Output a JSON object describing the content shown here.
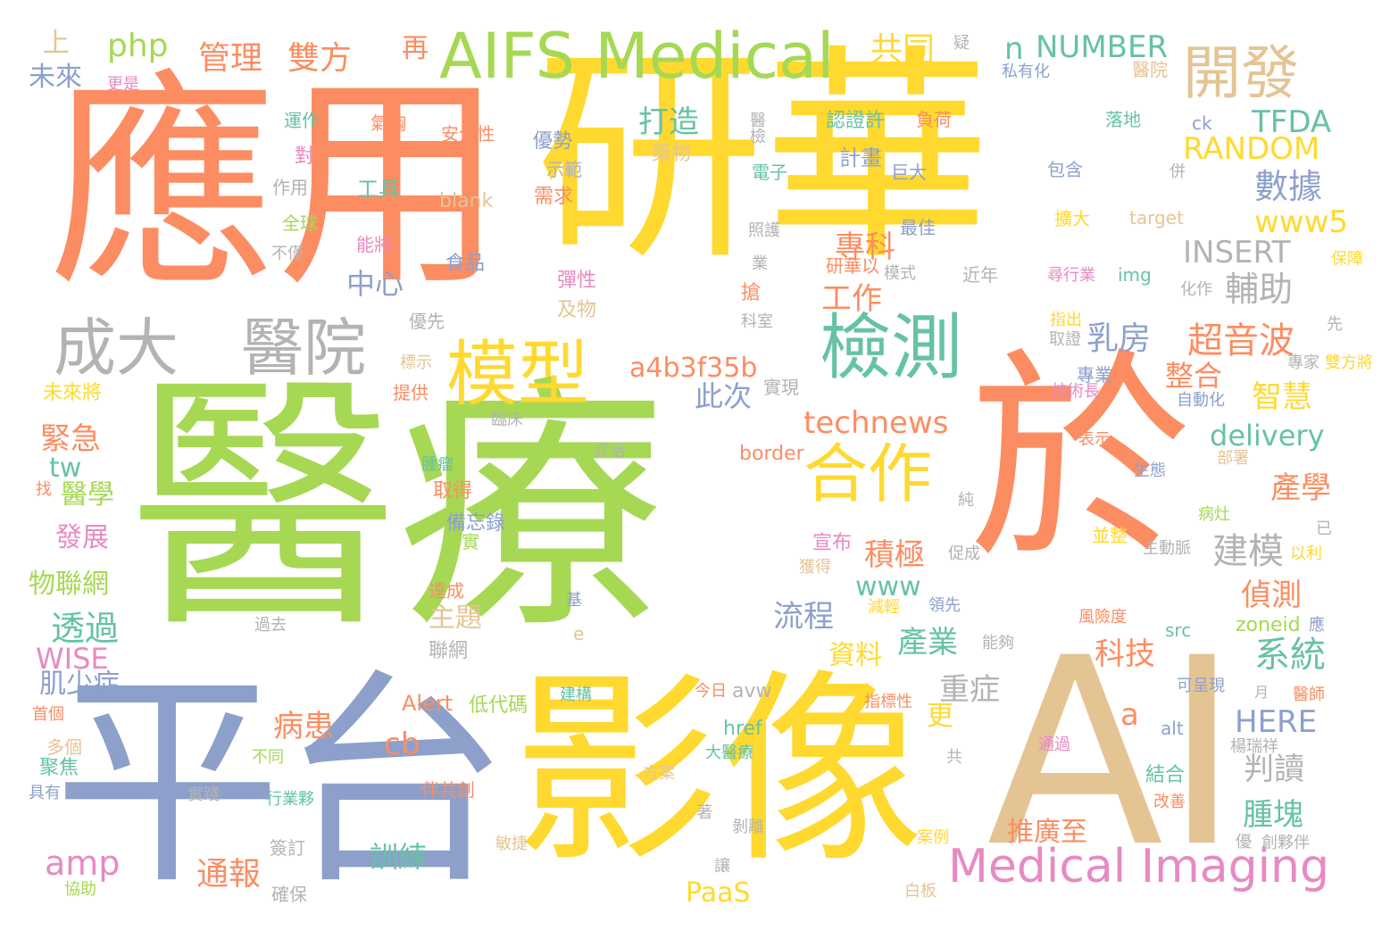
{
  "palette": {
    "orange": "#fc8d62",
    "yellow": "#ffd92f",
    "green": "#a6d854",
    "blue": "#8da0cb",
    "pink": "#e78ac3",
    "tan": "#e5c494",
    "teal": "#66c2a5",
    "gray": "#b3b3b3"
  },
  "words": [
    {
      "text": "應用",
      "color": "#fc8d62"
    },
    {
      "text": "研華",
      "color": "#ffd92f"
    },
    {
      "text": "醫療",
      "color": "#a6d854"
    },
    {
      "text": "平台",
      "color": "#8da0cb"
    },
    {
      "text": "影像",
      "color": "#ffd92f"
    },
    {
      "text": "於",
      "color": "#fc8d62"
    },
    {
      "text": "AI",
      "color": "#e5c494"
    },
    {
      "text": "AIFS Medical",
      "color": "#a6d854"
    },
    {
      "text": "開發",
      "color": "#e5c494"
    },
    {
      "text": "成大",
      "color": "#b3b3b3"
    },
    {
      "text": "醫院",
      "color": "#b3b3b3"
    },
    {
      "text": "模型",
      "color": "#ffd92f"
    },
    {
      "text": "檢測",
      "color": "#66c2a5"
    },
    {
      "text": "合作",
      "color": "#ffd92f"
    },
    {
      "text": "Medical Imaging",
      "color": "#e78ac3"
    },
    {
      "text": "管理",
      "color": "#fc8d62"
    },
    {
      "text": "雙方",
      "color": "#fc8d62"
    },
    {
      "text": "共同",
      "color": "#ffd92f"
    },
    {
      "text": "php",
      "color": "#a6d854"
    },
    {
      "text": "上",
      "color": "#e5c494"
    },
    {
      "text": "未來",
      "color": "#8da0cb"
    },
    {
      "text": "再",
      "color": "#fc8d62"
    },
    {
      "text": "NUMBER",
      "color": "#66c2a5"
    },
    {
      "text": "n",
      "color": "#66c2a5"
    },
    {
      "text": "TFDA",
      "color": "#66c2a5"
    },
    {
      "text": "RANDOM",
      "color": "#ffd92f"
    },
    {
      "text": "數據",
      "color": "#8da0cb"
    },
    {
      "text": "打造",
      "color": "#66c2a5"
    },
    {
      "text": "www5",
      "color": "#ffd92f"
    },
    {
      "text": "INSERT",
      "color": "#b3b3b3"
    },
    {
      "text": "輔助",
      "color": "#b3b3b3"
    },
    {
      "text": "專科",
      "color": "#fc8d62"
    },
    {
      "text": "工作",
      "color": "#fc8d62"
    },
    {
      "text": "中心",
      "color": "#8da0cb"
    },
    {
      "text": "乳房",
      "color": "#8da0cb"
    },
    {
      "text": "超音波",
      "color": "#fc8d62"
    },
    {
      "text": "a4b3f35b",
      "color": "#fc8d62"
    },
    {
      "text": "此次",
      "color": "#8da0cb"
    },
    {
      "text": "整合",
      "color": "#fc8d62"
    },
    {
      "text": "智慧",
      "color": "#ffd92f"
    },
    {
      "text": "technews",
      "color": "#fc8d62"
    },
    {
      "text": "delivery",
      "color": "#66c2a5"
    },
    {
      "text": "緊急",
      "color": "#fc8d62"
    },
    {
      "text": "tw",
      "color": "#66c2a5"
    },
    {
      "text": "醫學",
      "color": "#a6d854"
    },
    {
      "text": "發展",
      "color": "#e78ac3"
    },
    {
      "text": "物聯網",
      "color": "#a6d854"
    },
    {
      "text": "透過",
      "color": "#66c2a5"
    },
    {
      "text": "WISE",
      "color": "#e78ac3"
    },
    {
      "text": "肌少症",
      "color": "#8da0cb"
    },
    {
      "text": "積極",
      "color": "#fc8d62"
    },
    {
      "text": "www",
      "color": "#66c2a5"
    },
    {
      "text": "流程",
      "color": "#8da0cb"
    },
    {
      "text": "產學",
      "color": "#fc8d62"
    },
    {
      "text": "建模",
      "color": "#b3b3b3"
    },
    {
      "text": "偵測",
      "color": "#fc8d62"
    },
    {
      "text": "主題",
      "color": "#e5c494"
    },
    {
      "text": "產業",
      "color": "#66c2a5"
    },
    {
      "text": "資料",
      "color": "#ffd92f"
    },
    {
      "text": "科技",
      "color": "#fc8d62"
    },
    {
      "text": "系統",
      "color": "#66c2a5"
    },
    {
      "text": "重症",
      "color": "#b3b3b3"
    },
    {
      "text": "更",
      "color": "#ffd92f"
    },
    {
      "text": "a",
      "color": "#fc8d62"
    },
    {
      "text": "HERE",
      "color": "#8da0cb"
    },
    {
      "text": "病患",
      "color": "#fc8d62"
    },
    {
      "text": "cb",
      "color": "#fc8d62"
    },
    {
      "text": "判讀",
      "color": "#b3b3b3"
    },
    {
      "text": "腫塊",
      "color": "#66c2a5"
    },
    {
      "text": "amp",
      "color": "#e78ac3"
    },
    {
      "text": "通報",
      "color": "#fc8d62"
    },
    {
      "text": "訓練",
      "color": "#66c2a5"
    },
    {
      "text": "推廣至",
      "color": "#fc8d62"
    },
    {
      "text": "PaaS",
      "color": "#ffd92f"
    },
    {
      "text": "宣布",
      "color": "#e78ac3"
    },
    {
      "text": "Alert",
      "color": "#fc8d62"
    },
    {
      "text": "href",
      "color": "#66c2a5"
    },
    {
      "text": "zoneid",
      "color": "#a6d854"
    },
    {
      "text": "src",
      "color": "#66c2a5"
    },
    {
      "text": "target",
      "color": "#e5c494"
    },
    {
      "text": "img",
      "color": "#66c2a5"
    },
    {
      "text": "blank",
      "color": "#e5c494"
    },
    {
      "text": "border",
      "color": "#fc8d62"
    },
    {
      "text": "alt",
      "color": "#8da0cb"
    },
    {
      "text": "ck",
      "color": "#8da0cb"
    },
    {
      "text": "avw",
      "color": "#b3b3b3"
    },
    {
      "text": "e",
      "color": "#e5c494"
    },
    {
      "text": "私有化",
      "color": "#8da0cb"
    },
    {
      "text": "醫院",
      "color": "#e5c494"
    },
    {
      "text": "更是",
      "color": "#e78ac3"
    },
    {
      "text": "運作",
      "color": "#66c2a5"
    },
    {
      "text": "氣胸",
      "color": "#fc8d62"
    },
    {
      "text": "安全性",
      "color": "#fc8d62"
    },
    {
      "text": "優勢",
      "color": "#8da0cb"
    },
    {
      "text": "認證許",
      "color": "#66c2a5"
    },
    {
      "text": "負荷",
      "color": "#fc8d62"
    },
    {
      "text": "落地",
      "color": "#66c2a5"
    },
    {
      "text": "對",
      "color": "#e78ac3"
    },
    {
      "text": "示範",
      "color": "#b3b3b3"
    },
    {
      "text": "藥物",
      "color": "#e5c494"
    },
    {
      "text": "醫檢",
      "color": "#b3b3b3"
    },
    {
      "text": "計畫",
      "color": "#8da0cb"
    },
    {
      "text": "電子",
      "color": "#66c2a5"
    },
    {
      "text": "巨大",
      "color": "#8da0cb"
    },
    {
      "text": "包含",
      "color": "#8da0cb"
    },
    {
      "text": "作用",
      "color": "#b3b3b3"
    },
    {
      "text": "工具",
      "color": "#66c2a5"
    },
    {
      "text": "需求",
      "color": "#fc8d62"
    },
    {
      "text": "全球",
      "color": "#a6d854"
    },
    {
      "text": "照護",
      "color": "#b3b3b3"
    },
    {
      "text": "最佳",
      "color": "#8da0cb"
    },
    {
      "text": "擴大",
      "color": "#ffd92f"
    },
    {
      "text": "不僅",
      "color": "#b3b3b3"
    },
    {
      "text": "能將",
      "color": "#e78ac3"
    },
    {
      "text": "食品",
      "color": "#8da0cb"
    },
    {
      "text": "業",
      "color": "#b3b3b3"
    },
    {
      "text": "研華以",
      "color": "#fc8d62"
    },
    {
      "text": "模式",
      "color": "#b3b3b3"
    },
    {
      "text": "近年",
      "color": "#b3b3b3"
    },
    {
      "text": "尋行業",
      "color": "#e78ac3"
    },
    {
      "text": "保障",
      "color": "#ffd92f"
    },
    {
      "text": "彈性",
      "color": "#e78ac3"
    },
    {
      "text": "及物",
      "color": "#e5c494"
    },
    {
      "text": "搶",
      "color": "#fc8d62"
    },
    {
      "text": "科室",
      "color": "#b3b3b3"
    },
    {
      "text": "化作",
      "color": "#b3b3b3"
    },
    {
      "text": "優先",
      "color": "#b3b3b3"
    },
    {
      "text": "指出",
      "color": "#ffd92f"
    },
    {
      "text": "取證",
      "color": "#b3b3b3"
    },
    {
      "text": "先",
      "color": "#b3b3b3"
    },
    {
      "text": "標示",
      "color": "#e5c494"
    },
    {
      "text": "專業",
      "color": "#8da0cb"
    },
    {
      "text": "專家",
      "color": "#b3b3b3"
    },
    {
      "text": "雙方將",
      "color": "#ffd92f"
    },
    {
      "text": "未來將",
      "color": "#ffd92f"
    },
    {
      "text": "提供",
      "color": "#fc8d62"
    },
    {
      "text": "實現",
      "color": "#b3b3b3"
    },
    {
      "text": "技術長",
      "color": "#e78ac3"
    },
    {
      "text": "自動化",
      "color": "#8da0cb"
    },
    {
      "text": "臨床",
      "color": "#b3b3b3"
    },
    {
      "text": "診治",
      "color": "#b3b3b3"
    },
    {
      "text": "表示",
      "color": "#fc8d62"
    },
    {
      "text": "部署",
      "color": "#e5c494"
    },
    {
      "text": "找",
      "color": "#fc8d62"
    },
    {
      "text": "腫瘤",
      "color": "#66c2a5"
    },
    {
      "text": "取得",
      "color": "#fc8d62"
    },
    {
      "text": "生態",
      "color": "#8da0cb"
    },
    {
      "text": "備忘錄",
      "color": "#8da0cb"
    },
    {
      "text": "純",
      "color": "#b3b3b3"
    },
    {
      "text": "病灶",
      "color": "#a6d854"
    },
    {
      "text": "事實",
      "color": "#a6d854"
    },
    {
      "text": "獲得",
      "color": "#e5c494"
    },
    {
      "text": "促成",
      "color": "#b3b3b3"
    },
    {
      "text": "並整",
      "color": "#ffd92f"
    },
    {
      "text": "主動脈",
      "color": "#b3b3b3"
    },
    {
      "text": "以利",
      "color": "#ffd92f"
    },
    {
      "text": "已",
      "color": "#b3b3b3"
    },
    {
      "text": "達成",
      "color": "#fc8d62"
    },
    {
      "text": "基",
      "color": "#8da0cb"
    },
    {
      "text": "減輕",
      "color": "#ffd92f"
    },
    {
      "text": "領先",
      "color": "#8da0cb"
    },
    {
      "text": "風險度",
      "color": "#fc8d62"
    },
    {
      "text": "應",
      "color": "#8da0cb"
    },
    {
      "text": "過去",
      "color": "#b3b3b3"
    },
    {
      "text": "聯網",
      "color": "#b3b3b3"
    },
    {
      "text": "能夠",
      "color": "#b3b3b3"
    },
    {
      "text": "今日",
      "color": "#fc8d62"
    },
    {
      "text": "建構",
      "color": "#66c2a5"
    },
    {
      "text": "低代碼",
      "color": "#a6d854"
    },
    {
      "text": "指標性",
      "color": "#fc8d62"
    },
    {
      "text": "月",
      "color": "#b3b3b3"
    },
    {
      "text": "醫師",
      "color": "#fc8d62"
    },
    {
      "text": "可呈現",
      "color": "#8da0cb"
    },
    {
      "text": "首個",
      "color": "#fc8d62"
    },
    {
      "text": "多個",
      "color": "#e5c494"
    },
    {
      "text": "大醫療",
      "color": "#66c2a5"
    },
    {
      "text": "不同",
      "color": "#a6d854"
    },
    {
      "text": "聚焦",
      "color": "#66c2a5"
    },
    {
      "text": "具有",
      "color": "#8da0cb"
    },
    {
      "text": "實踐",
      "color": "#b3b3b3"
    },
    {
      "text": "行業夥",
      "color": "#66c2a5"
    },
    {
      "text": "伴共創",
      "color": "#fc8d62"
    },
    {
      "text": "方案",
      "color": "#e5c494"
    },
    {
      "text": "共",
      "color": "#b3b3b3"
    },
    {
      "text": "通過",
      "color": "#e78ac3"
    },
    {
      "text": "楊瑞祥",
      "color": "#b3b3b3"
    },
    {
      "text": "結合",
      "color": "#66c2a5"
    },
    {
      "text": "改善",
      "color": "#fc8d62"
    },
    {
      "text": "著",
      "color": "#b3b3b3"
    },
    {
      "text": "剝離",
      "color": "#b3b3b3"
    },
    {
      "text": "案例",
      "color": "#ffd92f"
    },
    {
      "text": "優",
      "color": "#b3b3b3"
    },
    {
      "text": "創夥伴",
      "color": "#b3b3b3"
    },
    {
      "text": "簽訂",
      "color": "#b3b3b3"
    },
    {
      "text": "讓",
      "color": "#b3b3b3"
    },
    {
      "text": "敏捷",
      "color": "#e5c494"
    },
    {
      "text": "白板",
      "color": "#e5c494"
    },
    {
      "text": "協助",
      "color": "#a6d854"
    },
    {
      "text": "確保",
      "color": "#b3b3b3"
    },
    {
      "text": "疑",
      "color": "#b3b3b3"
    },
    {
      "text": "併",
      "color": "#b3b3b3"
    }
  ]
}
